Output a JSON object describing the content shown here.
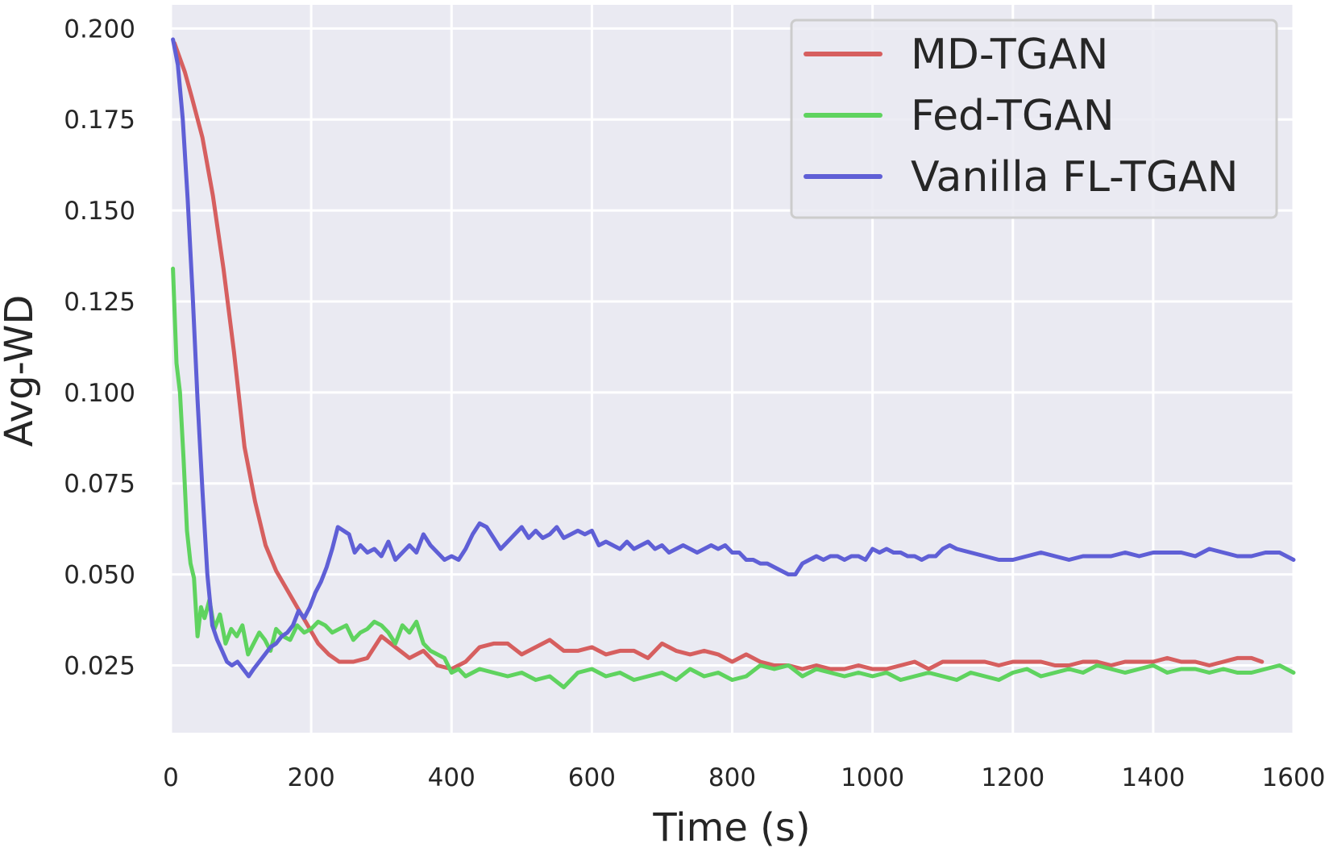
{
  "chart_data": {
    "type": "line",
    "title": "",
    "xlabel": "Time (s)",
    "ylabel": "Avg-WD",
    "xlim": [
      0,
      1600
    ],
    "ylim": [
      0.0065,
      0.2065
    ],
    "xticks": [
      0,
      200,
      400,
      600,
      800,
      1000,
      1200,
      1400,
      1600
    ],
    "yticks": [
      0.025,
      0.05,
      0.075,
      0.1,
      0.125,
      0.15,
      0.175,
      0.2
    ],
    "xtick_labels": [
      "0",
      "200",
      "400",
      "600",
      "800",
      "1000",
      "1200",
      "1400",
      "1600"
    ],
    "ytick_labels": [
      "0.025",
      "0.050",
      "0.075",
      "0.100",
      "0.125",
      "0.150",
      "0.175",
      "0.200"
    ],
    "grid": true,
    "legend_position": "top-right",
    "series": [
      {
        "name": "MD-TGAN",
        "color": "#d65f5f",
        "x": [
          5,
          20,
          30,
          45,
          60,
          75,
          90,
          105,
          120,
          135,
          150,
          165,
          180,
          195,
          210,
          225,
          240,
          260,
          280,
          300,
          320,
          340,
          360,
          380,
          400,
          420,
          440,
          460,
          480,
          500,
          520,
          540,
          560,
          580,
          600,
          620,
          640,
          660,
          680,
          700,
          720,
          740,
          760,
          780,
          800,
          820,
          840,
          860,
          880,
          900,
          920,
          940,
          960,
          980,
          1000,
          1020,
          1040,
          1060,
          1080,
          1100,
          1120,
          1140,
          1160,
          1180,
          1200,
          1220,
          1240,
          1260,
          1280,
          1300,
          1320,
          1340,
          1360,
          1380,
          1400,
          1420,
          1440,
          1460,
          1480,
          1500,
          1520,
          1540,
          1555
        ],
        "values": [
          0.196,
          0.188,
          0.181,
          0.17,
          0.154,
          0.134,
          0.111,
          0.085,
          0.07,
          0.058,
          0.051,
          0.046,
          0.041,
          0.036,
          0.031,
          0.028,
          0.026,
          0.026,
          0.027,
          0.033,
          0.03,
          0.027,
          0.029,
          0.025,
          0.024,
          0.026,
          0.03,
          0.031,
          0.031,
          0.028,
          0.03,
          0.032,
          0.029,
          0.029,
          0.03,
          0.028,
          0.029,
          0.029,
          0.027,
          0.031,
          0.029,
          0.028,
          0.029,
          0.028,
          0.026,
          0.028,
          0.026,
          0.025,
          0.025,
          0.024,
          0.025,
          0.024,
          0.024,
          0.025,
          0.024,
          0.024,
          0.025,
          0.026,
          0.024,
          0.026,
          0.026,
          0.026,
          0.026,
          0.025,
          0.026,
          0.026,
          0.026,
          0.025,
          0.025,
          0.026,
          0.026,
          0.025,
          0.026,
          0.026,
          0.026,
          0.027,
          0.026,
          0.026,
          0.025,
          0.026,
          0.027,
          0.027,
          0.026
        ]
      },
      {
        "name": "Fed-TGAN",
        "color": "#5fd35f",
        "x": [
          3,
          8,
          13,
          18,
          23,
          28,
          33,
          38,
          43,
          48,
          55,
          62,
          70,
          78,
          86,
          94,
          102,
          110,
          118,
          126,
          134,
          142,
          150,
          160,
          170,
          180,
          190,
          200,
          210,
          220,
          230,
          240,
          250,
          260,
          270,
          280,
          290,
          300,
          310,
          320,
          330,
          340,
          350,
          360,
          370,
          380,
          390,
          400,
          410,
          420,
          440,
          460,
          480,
          500,
          520,
          540,
          560,
          580,
          600,
          620,
          640,
          660,
          680,
          700,
          720,
          740,
          760,
          780,
          800,
          820,
          840,
          860,
          880,
          900,
          920,
          940,
          960,
          980,
          1000,
          1020,
          1040,
          1060,
          1080,
          1100,
          1120,
          1140,
          1160,
          1180,
          1200,
          1220,
          1240,
          1260,
          1280,
          1300,
          1320,
          1340,
          1360,
          1380,
          1400,
          1420,
          1440,
          1460,
          1480,
          1500,
          1520,
          1540,
          1560,
          1580,
          1600
        ],
        "values": [
          0.134,
          0.108,
          0.1,
          0.082,
          0.062,
          0.053,
          0.049,
          0.033,
          0.041,
          0.038,
          0.043,
          0.035,
          0.039,
          0.031,
          0.035,
          0.033,
          0.036,
          0.028,
          0.031,
          0.034,
          0.032,
          0.029,
          0.035,
          0.033,
          0.032,
          0.036,
          0.034,
          0.035,
          0.037,
          0.036,
          0.034,
          0.035,
          0.036,
          0.032,
          0.034,
          0.035,
          0.037,
          0.036,
          0.034,
          0.031,
          0.036,
          0.034,
          0.037,
          0.031,
          0.029,
          0.028,
          0.027,
          0.023,
          0.024,
          0.022,
          0.024,
          0.023,
          0.022,
          0.023,
          0.021,
          0.022,
          0.019,
          0.023,
          0.024,
          0.022,
          0.023,
          0.021,
          0.022,
          0.023,
          0.021,
          0.024,
          0.022,
          0.023,
          0.021,
          0.022,
          0.025,
          0.024,
          0.025,
          0.022,
          0.024,
          0.023,
          0.022,
          0.023,
          0.022,
          0.023,
          0.021,
          0.022,
          0.023,
          0.022,
          0.021,
          0.023,
          0.022,
          0.021,
          0.023,
          0.024,
          0.022,
          0.023,
          0.024,
          0.023,
          0.025,
          0.024,
          0.023,
          0.024,
          0.025,
          0.023,
          0.024,
          0.024,
          0.023,
          0.024,
          0.023,
          0.023,
          0.024,
          0.025,
          0.023
        ]
      },
      {
        "name": "Vanilla FL-TGAN",
        "color": "#5f5fd6",
        "x": [
          3,
          10,
          17,
          24,
          31,
          38,
          45,
          52,
          59,
          66,
          73,
          80,
          87,
          95,
          103,
          111,
          118,
          126,
          134,
          142,
          150,
          158,
          166,
          174,
          182,
          190,
          198,
          206,
          214,
          222,
          230,
          238,
          246,
          254,
          262,
          270,
          280,
          290,
          300,
          310,
          320,
          330,
          340,
          350,
          360,
          370,
          380,
          390,
          400,
          410,
          420,
          430,
          440,
          450,
          460,
          470,
          480,
          490,
          500,
          510,
          520,
          530,
          540,
          550,
          560,
          570,
          580,
          590,
          600,
          610,
          620,
          630,
          640,
          650,
          660,
          670,
          680,
          690,
          700,
          710,
          720,
          730,
          740,
          750,
          760,
          770,
          780,
          790,
          800,
          810,
          820,
          830,
          840,
          850,
          860,
          870,
          880,
          890,
          900,
          910,
          920,
          930,
          940,
          950,
          960,
          970,
          980,
          990,
          1000,
          1010,
          1020,
          1030,
          1040,
          1050,
          1060,
          1070,
          1080,
          1090,
          1100,
          1110,
          1120,
          1140,
          1160,
          1180,
          1200,
          1220,
          1240,
          1260,
          1280,
          1300,
          1320,
          1340,
          1360,
          1380,
          1400,
          1420,
          1440,
          1460,
          1480,
          1500,
          1520,
          1540,
          1560,
          1580,
          1600
        ],
        "values": [
          0.197,
          0.19,
          0.175,
          0.153,
          0.127,
          0.098,
          0.073,
          0.05,
          0.036,
          0.032,
          0.029,
          0.026,
          0.025,
          0.026,
          0.024,
          0.022,
          0.024,
          0.026,
          0.028,
          0.03,
          0.031,
          0.033,
          0.034,
          0.036,
          0.04,
          0.038,
          0.041,
          0.045,
          0.048,
          0.052,
          0.057,
          0.063,
          0.062,
          0.061,
          0.056,
          0.058,
          0.056,
          0.057,
          0.055,
          0.059,
          0.054,
          0.056,
          0.058,
          0.056,
          0.061,
          0.058,
          0.056,
          0.054,
          0.055,
          0.054,
          0.057,
          0.061,
          0.064,
          0.063,
          0.06,
          0.057,
          0.059,
          0.061,
          0.063,
          0.06,
          0.062,
          0.06,
          0.061,
          0.063,
          0.06,
          0.061,
          0.062,
          0.061,
          0.062,
          0.058,
          0.059,
          0.058,
          0.057,
          0.059,
          0.057,
          0.058,
          0.059,
          0.057,
          0.058,
          0.056,
          0.057,
          0.058,
          0.057,
          0.056,
          0.057,
          0.058,
          0.057,
          0.058,
          0.056,
          0.056,
          0.054,
          0.054,
          0.053,
          0.053,
          0.052,
          0.051,
          0.05,
          0.05,
          0.053,
          0.054,
          0.055,
          0.054,
          0.055,
          0.055,
          0.054,
          0.055,
          0.055,
          0.054,
          0.057,
          0.056,
          0.057,
          0.056,
          0.056,
          0.055,
          0.055,
          0.054,
          0.055,
          0.055,
          0.057,
          0.058,
          0.057,
          0.056,
          0.055,
          0.054,
          0.054,
          0.055,
          0.056,
          0.055,
          0.054,
          0.055,
          0.055,
          0.055,
          0.056,
          0.055,
          0.056,
          0.056,
          0.056,
          0.055,
          0.057,
          0.056,
          0.055,
          0.055,
          0.056,
          0.056,
          0.054
        ]
      }
    ]
  }
}
